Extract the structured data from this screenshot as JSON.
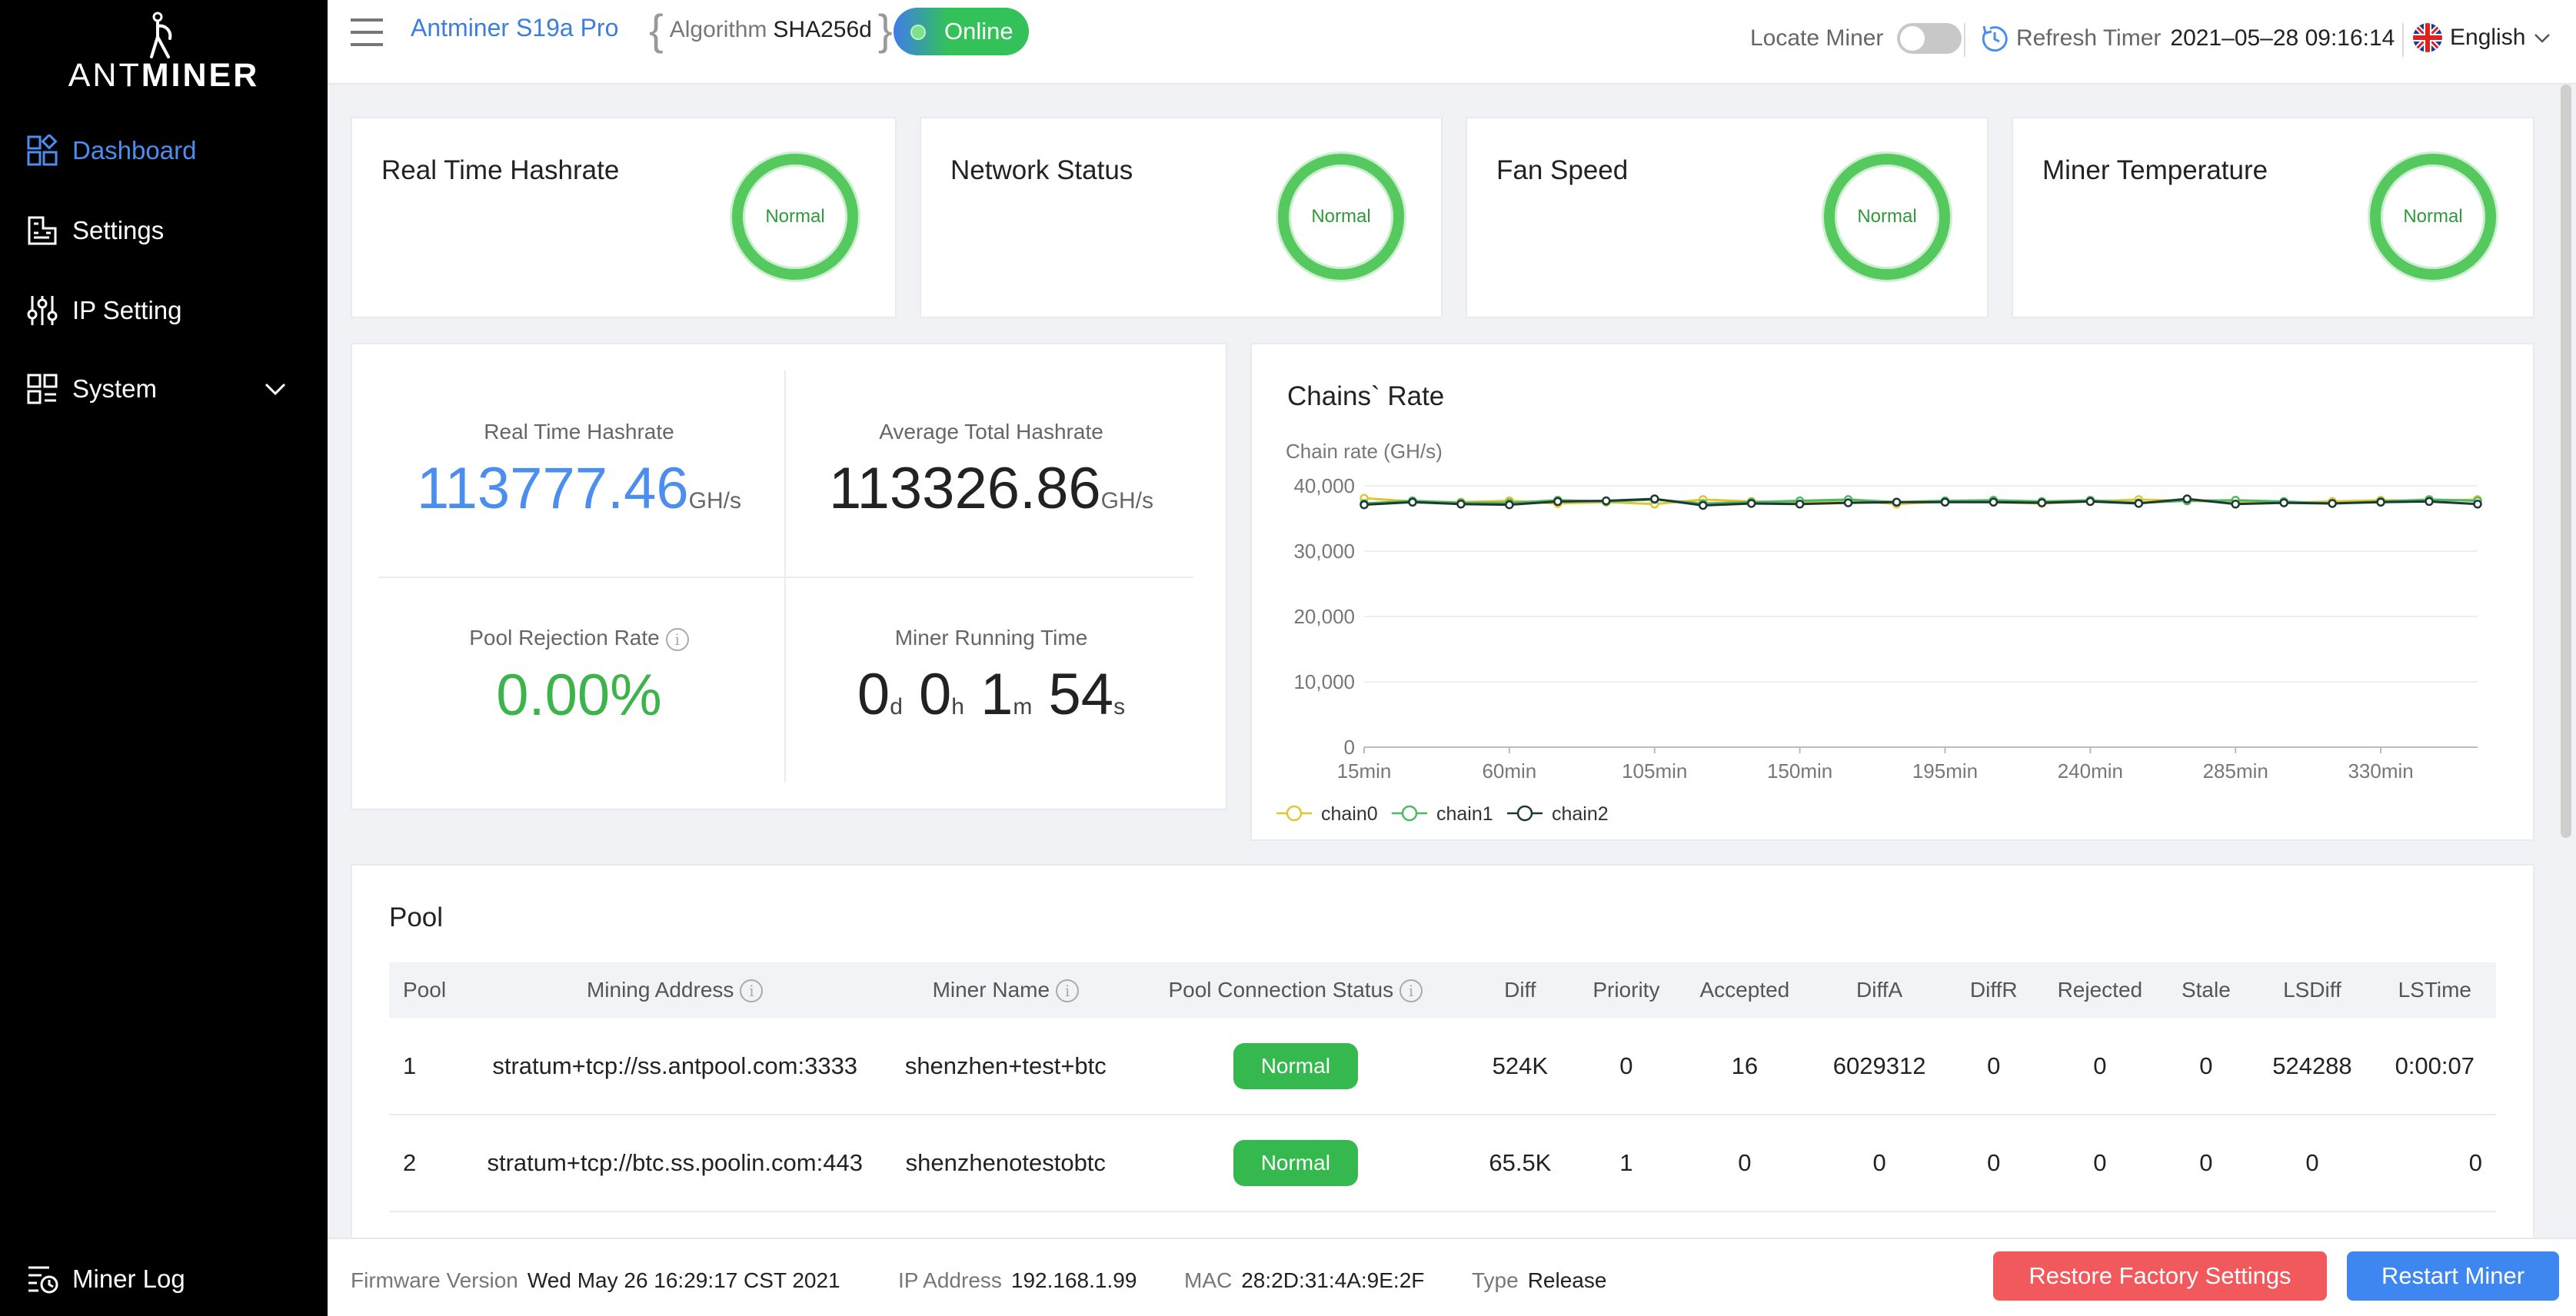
{
  "brand": {
    "logo_text_thin": "ANT",
    "logo_text_bold": "MINER"
  },
  "sidebar": {
    "items": [
      {
        "label": "Dashboard",
        "icon": "dashboard-icon",
        "active": true
      },
      {
        "label": "Settings",
        "icon": "settings-icon"
      },
      {
        "label": "IP Setting",
        "icon": "sliders-icon"
      },
      {
        "label": "System",
        "icon": "system-icon"
      }
    ],
    "footer_item": {
      "label": "Miner Log",
      "icon": "log-icon"
    }
  },
  "header": {
    "model": "Antminer S19a Pro",
    "algorithm_label": "Algorithm",
    "algorithm_value": "SHA256d",
    "status": "Online",
    "locate_label": "Locate Miner",
    "locate_on": false,
    "refresh_label": "Refresh Timer",
    "refresh_value": "2021–05–28 09:16:14",
    "language": "English"
  },
  "status_cards": [
    {
      "title": "Real Time Hashrate",
      "status": "Normal"
    },
    {
      "title": "Network Status",
      "status": "Normal"
    },
    {
      "title": "Fan Speed",
      "status": "Normal"
    },
    {
      "title": "Miner Temperature",
      "status": "Normal"
    }
  ],
  "hashrate": {
    "realtime_label": "Real Time Hashrate",
    "realtime_value": "113777.46",
    "realtime_unit": "GH/s",
    "average_label": "Average Total Hashrate",
    "average_value": "113326.86",
    "average_unit": "GH/s",
    "rejection_label": "Pool Rejection Rate",
    "rejection_value": "0.00%",
    "running_label": "Miner Running Time",
    "running": {
      "d": "0",
      "d_unit": "d",
      "h": "0",
      "h_unit": "h",
      "m": "1",
      "m_unit": "m",
      "s": "54",
      "s_unit": "s"
    }
  },
  "chart_data": {
    "type": "line",
    "title": "Chains` Rate",
    "ylabel": "Chain rate (GH/s)",
    "xlabel": "",
    "ylim": [
      0,
      40000
    ],
    "yticks": [
      "0",
      "10,000",
      "20,000",
      "30,000",
      "40,000"
    ],
    "xticks": [
      "15min",
      "60min",
      "105min",
      "150min",
      "195min",
      "240min",
      "285min",
      "330min"
    ],
    "x_minutes": [
      15,
      30,
      45,
      60,
      75,
      90,
      105,
      120,
      135,
      150,
      165,
      180,
      195,
      210,
      225,
      240,
      255,
      270,
      285,
      300,
      315,
      330,
      345,
      360
    ],
    "legend_position": "bottom-left",
    "series": [
      {
        "name": "chain0",
        "color": "#e0c534",
        "values": [
          38100,
          37600,
          37500,
          37700,
          37300,
          37500,
          37200,
          37900,
          37600,
          37400,
          37800,
          37200,
          37600,
          37500,
          37300,
          37600,
          37900,
          37700,
          37500,
          37400,
          37600,
          37800,
          37700,
          37900
        ]
      },
      {
        "name": "chain1",
        "color": "#4fb865",
        "values": [
          37300,
          37700,
          37400,
          37400,
          37800,
          37600,
          37900,
          37300,
          37500,
          37700,
          37900,
          37500,
          37700,
          37800,
          37600,
          37800,
          37400,
          37700,
          37800,
          37600,
          37300,
          37600,
          37900,
          37700
        ]
      },
      {
        "name": "chain2",
        "color": "#1c3a33",
        "values": [
          37100,
          37500,
          37200,
          37100,
          37600,
          37700,
          38000,
          37000,
          37300,
          37200,
          37400,
          37500,
          37500,
          37500,
          37400,
          37600,
          37300,
          38000,
          37200,
          37400,
          37300,
          37500,
          37600,
          37200
        ]
      }
    ]
  },
  "pool": {
    "title": "Pool",
    "columns": [
      "Pool",
      "Mining Address",
      "Miner Name",
      "Pool Connection Status",
      "Diff",
      "Priority",
      "Accepted",
      "DiffA",
      "DiffR",
      "Rejected",
      "Stale",
      "LSDiff",
      "LSTime"
    ],
    "rows": [
      {
        "pool": "1",
        "address": "stratum+tcp://ss.antpool.com:3333",
        "miner": "shenzhen+test+btc",
        "status": "Normal",
        "diff": "524K",
        "priority": "0",
        "accepted": "16",
        "diffa": "6029312",
        "diffr": "0",
        "rejected": "0",
        "stale": "0",
        "lsdiff": "524288",
        "lstime": "0:00:07"
      },
      {
        "pool": "2",
        "address": "stratum+tcp://btc.ss.poolin.com:443",
        "miner": "shenzhenotestobtc",
        "status": "Normal",
        "diff": "65.5K",
        "priority": "1",
        "accepted": "0",
        "diffa": "0",
        "diffr": "0",
        "rejected": "0",
        "stale": "0",
        "lsdiff": "0",
        "lstime": "0"
      }
    ]
  },
  "footer": {
    "firmware_label": "Firmware Version",
    "firmware_value": "Wed May 26 16:29:17 CST 2021",
    "ip_label": "IP Address",
    "ip_value": "192.168.1.99",
    "mac_label": "MAC",
    "mac_value": "28:2D:31:4A:9E:2F",
    "type_label": "Type",
    "type_value": "Release",
    "restore_label": "Restore Factory Settings",
    "restart_label": "Restart Miner"
  },
  "colors": {
    "accent": "#4b8ef0",
    "ok": "#3cb44b",
    "danger": "#f1595c",
    "primary_button": "#3e86f0"
  }
}
